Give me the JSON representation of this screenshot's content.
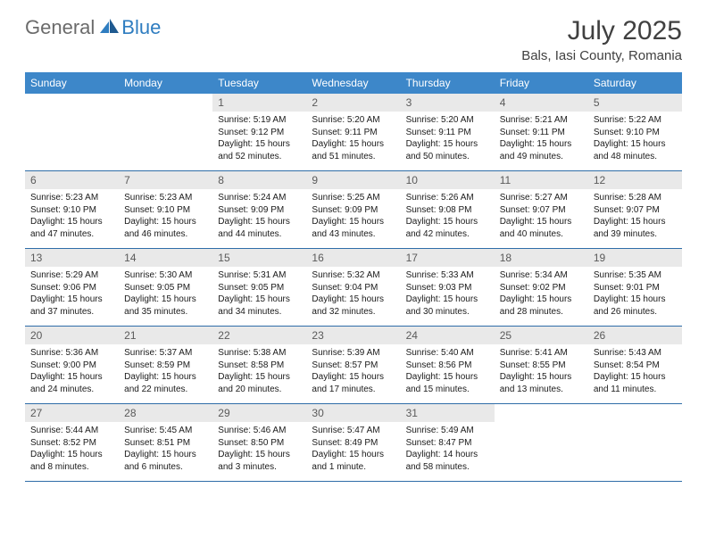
{
  "logo": {
    "textGeneral": "General",
    "textBlue": "Blue"
  },
  "title": "July 2025",
  "location": "Bals, Iasi County, Romania",
  "colors": {
    "headerBar": "#3d87c9",
    "weekBorder": "#2f6da8",
    "dayNumBg": "#e9e9e9",
    "logoBlue": "#2f7dc0",
    "logoGray": "#6b6b6b"
  },
  "dayNames": [
    "Sunday",
    "Monday",
    "Tuesday",
    "Wednesday",
    "Thursday",
    "Friday",
    "Saturday"
  ],
  "weeks": [
    [
      null,
      null,
      {
        "n": "1",
        "sr": "5:19 AM",
        "ss": "9:12 PM",
        "dl": "15 hours and 52 minutes."
      },
      {
        "n": "2",
        "sr": "5:20 AM",
        "ss": "9:11 PM",
        "dl": "15 hours and 51 minutes."
      },
      {
        "n": "3",
        "sr": "5:20 AM",
        "ss": "9:11 PM",
        "dl": "15 hours and 50 minutes."
      },
      {
        "n": "4",
        "sr": "5:21 AM",
        "ss": "9:11 PM",
        "dl": "15 hours and 49 minutes."
      },
      {
        "n": "5",
        "sr": "5:22 AM",
        "ss": "9:10 PM",
        "dl": "15 hours and 48 minutes."
      }
    ],
    [
      {
        "n": "6",
        "sr": "5:23 AM",
        "ss": "9:10 PM",
        "dl": "15 hours and 47 minutes."
      },
      {
        "n": "7",
        "sr": "5:23 AM",
        "ss": "9:10 PM",
        "dl": "15 hours and 46 minutes."
      },
      {
        "n": "8",
        "sr": "5:24 AM",
        "ss": "9:09 PM",
        "dl": "15 hours and 44 minutes."
      },
      {
        "n": "9",
        "sr": "5:25 AM",
        "ss": "9:09 PM",
        "dl": "15 hours and 43 minutes."
      },
      {
        "n": "10",
        "sr": "5:26 AM",
        "ss": "9:08 PM",
        "dl": "15 hours and 42 minutes."
      },
      {
        "n": "11",
        "sr": "5:27 AM",
        "ss": "9:07 PM",
        "dl": "15 hours and 40 minutes."
      },
      {
        "n": "12",
        "sr": "5:28 AM",
        "ss": "9:07 PM",
        "dl": "15 hours and 39 minutes."
      }
    ],
    [
      {
        "n": "13",
        "sr": "5:29 AM",
        "ss": "9:06 PM",
        "dl": "15 hours and 37 minutes."
      },
      {
        "n": "14",
        "sr": "5:30 AM",
        "ss": "9:05 PM",
        "dl": "15 hours and 35 minutes."
      },
      {
        "n": "15",
        "sr": "5:31 AM",
        "ss": "9:05 PM",
        "dl": "15 hours and 34 minutes."
      },
      {
        "n": "16",
        "sr": "5:32 AM",
        "ss": "9:04 PM",
        "dl": "15 hours and 32 minutes."
      },
      {
        "n": "17",
        "sr": "5:33 AM",
        "ss": "9:03 PM",
        "dl": "15 hours and 30 minutes."
      },
      {
        "n": "18",
        "sr": "5:34 AM",
        "ss": "9:02 PM",
        "dl": "15 hours and 28 minutes."
      },
      {
        "n": "19",
        "sr": "5:35 AM",
        "ss": "9:01 PM",
        "dl": "15 hours and 26 minutes."
      }
    ],
    [
      {
        "n": "20",
        "sr": "5:36 AM",
        "ss": "9:00 PM",
        "dl": "15 hours and 24 minutes."
      },
      {
        "n": "21",
        "sr": "5:37 AM",
        "ss": "8:59 PM",
        "dl": "15 hours and 22 minutes."
      },
      {
        "n": "22",
        "sr": "5:38 AM",
        "ss": "8:58 PM",
        "dl": "15 hours and 20 minutes."
      },
      {
        "n": "23",
        "sr": "5:39 AM",
        "ss": "8:57 PM",
        "dl": "15 hours and 17 minutes."
      },
      {
        "n": "24",
        "sr": "5:40 AM",
        "ss": "8:56 PM",
        "dl": "15 hours and 15 minutes."
      },
      {
        "n": "25",
        "sr": "5:41 AM",
        "ss": "8:55 PM",
        "dl": "15 hours and 13 minutes."
      },
      {
        "n": "26",
        "sr": "5:43 AM",
        "ss": "8:54 PM",
        "dl": "15 hours and 11 minutes."
      }
    ],
    [
      {
        "n": "27",
        "sr": "5:44 AM",
        "ss": "8:52 PM",
        "dl": "15 hours and 8 minutes."
      },
      {
        "n": "28",
        "sr": "5:45 AM",
        "ss": "8:51 PM",
        "dl": "15 hours and 6 minutes."
      },
      {
        "n": "29",
        "sr": "5:46 AM",
        "ss": "8:50 PM",
        "dl": "15 hours and 3 minutes."
      },
      {
        "n": "30",
        "sr": "5:47 AM",
        "ss": "8:49 PM",
        "dl": "15 hours and 1 minute."
      },
      {
        "n": "31",
        "sr": "5:49 AM",
        "ss": "8:47 PM",
        "dl": "14 hours and 58 minutes."
      },
      null,
      null
    ]
  ],
  "labels": {
    "sunrise": "Sunrise: ",
    "sunset": "Sunset: ",
    "daylight": "Daylight: "
  }
}
